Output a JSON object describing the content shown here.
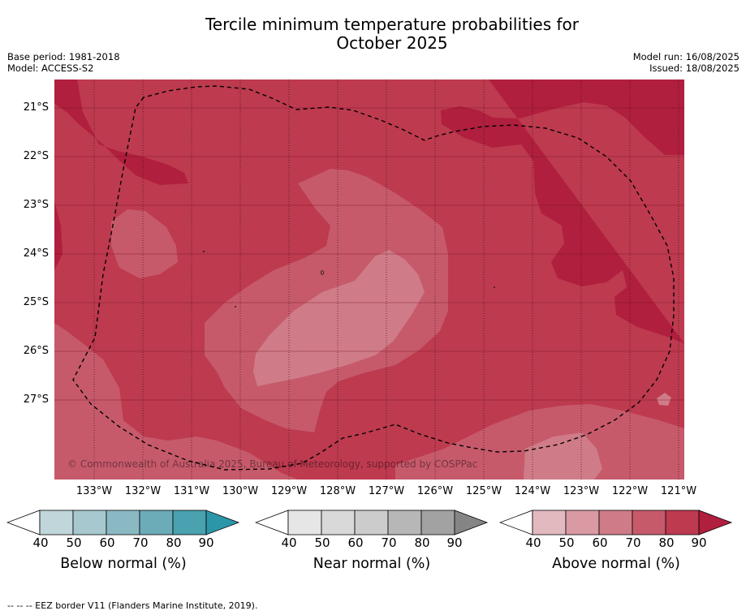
{
  "title_line1": "Tercile minimum temperature probabilities for",
  "title_line2": "October 2025",
  "base_period": "Base period: 1981-2018",
  "model": "Model: ACCESS-S2",
  "model_run": "Model run: 16/08/2025",
  "issued": "Issued: 18/08/2025",
  "lat_labels": [
    "21°S",
    "22°S",
    "23°S",
    "24°S",
    "25°S",
    "26°S",
    "27°S"
  ],
  "lon_labels": [
    "133°W",
    "132°W",
    "131°W",
    "130°W",
    "129°W",
    "128°W",
    "127°W",
    "126°W",
    "125°W",
    "124°W",
    "123°W",
    "122°W",
    "121°W"
  ],
  "copyright": "© Commonwealth of Australia 2025, Bureau of Meteorology, supported by COSPPac",
  "colorbars": [
    {
      "title": "Below normal (%)",
      "ticks": [
        "40",
        "50",
        "60",
        "70",
        "80",
        "90"
      ],
      "colors": [
        "#ffffff",
        "#c0d6db",
        "#a6c8ce",
        "#8bb9c3",
        "#6cabb8",
        "#4aa1b0",
        "#2c96a9"
      ]
    },
    {
      "title": "Near normal (%)",
      "ticks": [
        "40",
        "50",
        "60",
        "70",
        "80",
        "90"
      ],
      "colors": [
        "#ffffff",
        "#e6e6e6",
        "#d9d9d9",
        "#cccccc",
        "#b7b7b7",
        "#a2a2a2",
        "#858585"
      ]
    },
    {
      "title": "Above normal (%)",
      "ticks": [
        "40",
        "50",
        "60",
        "70",
        "80",
        "90"
      ],
      "colors": [
        "#ffffff",
        "#e3b9c0",
        "#d99aa4",
        "#cf7c88",
        "#c65a6b",
        "#bd3a4f",
        "#b01f3e"
      ]
    }
  ],
  "footnote": "--  --  -- EEZ border V11 (Flanders Marine Institute, 2019).",
  "map_colors": {
    "band_80_90": "#bd3a4f",
    "band_90_plus": "#b01f3e",
    "band_70_80": "#c65a6b",
    "band_60_70": "#cf7c88"
  }
}
